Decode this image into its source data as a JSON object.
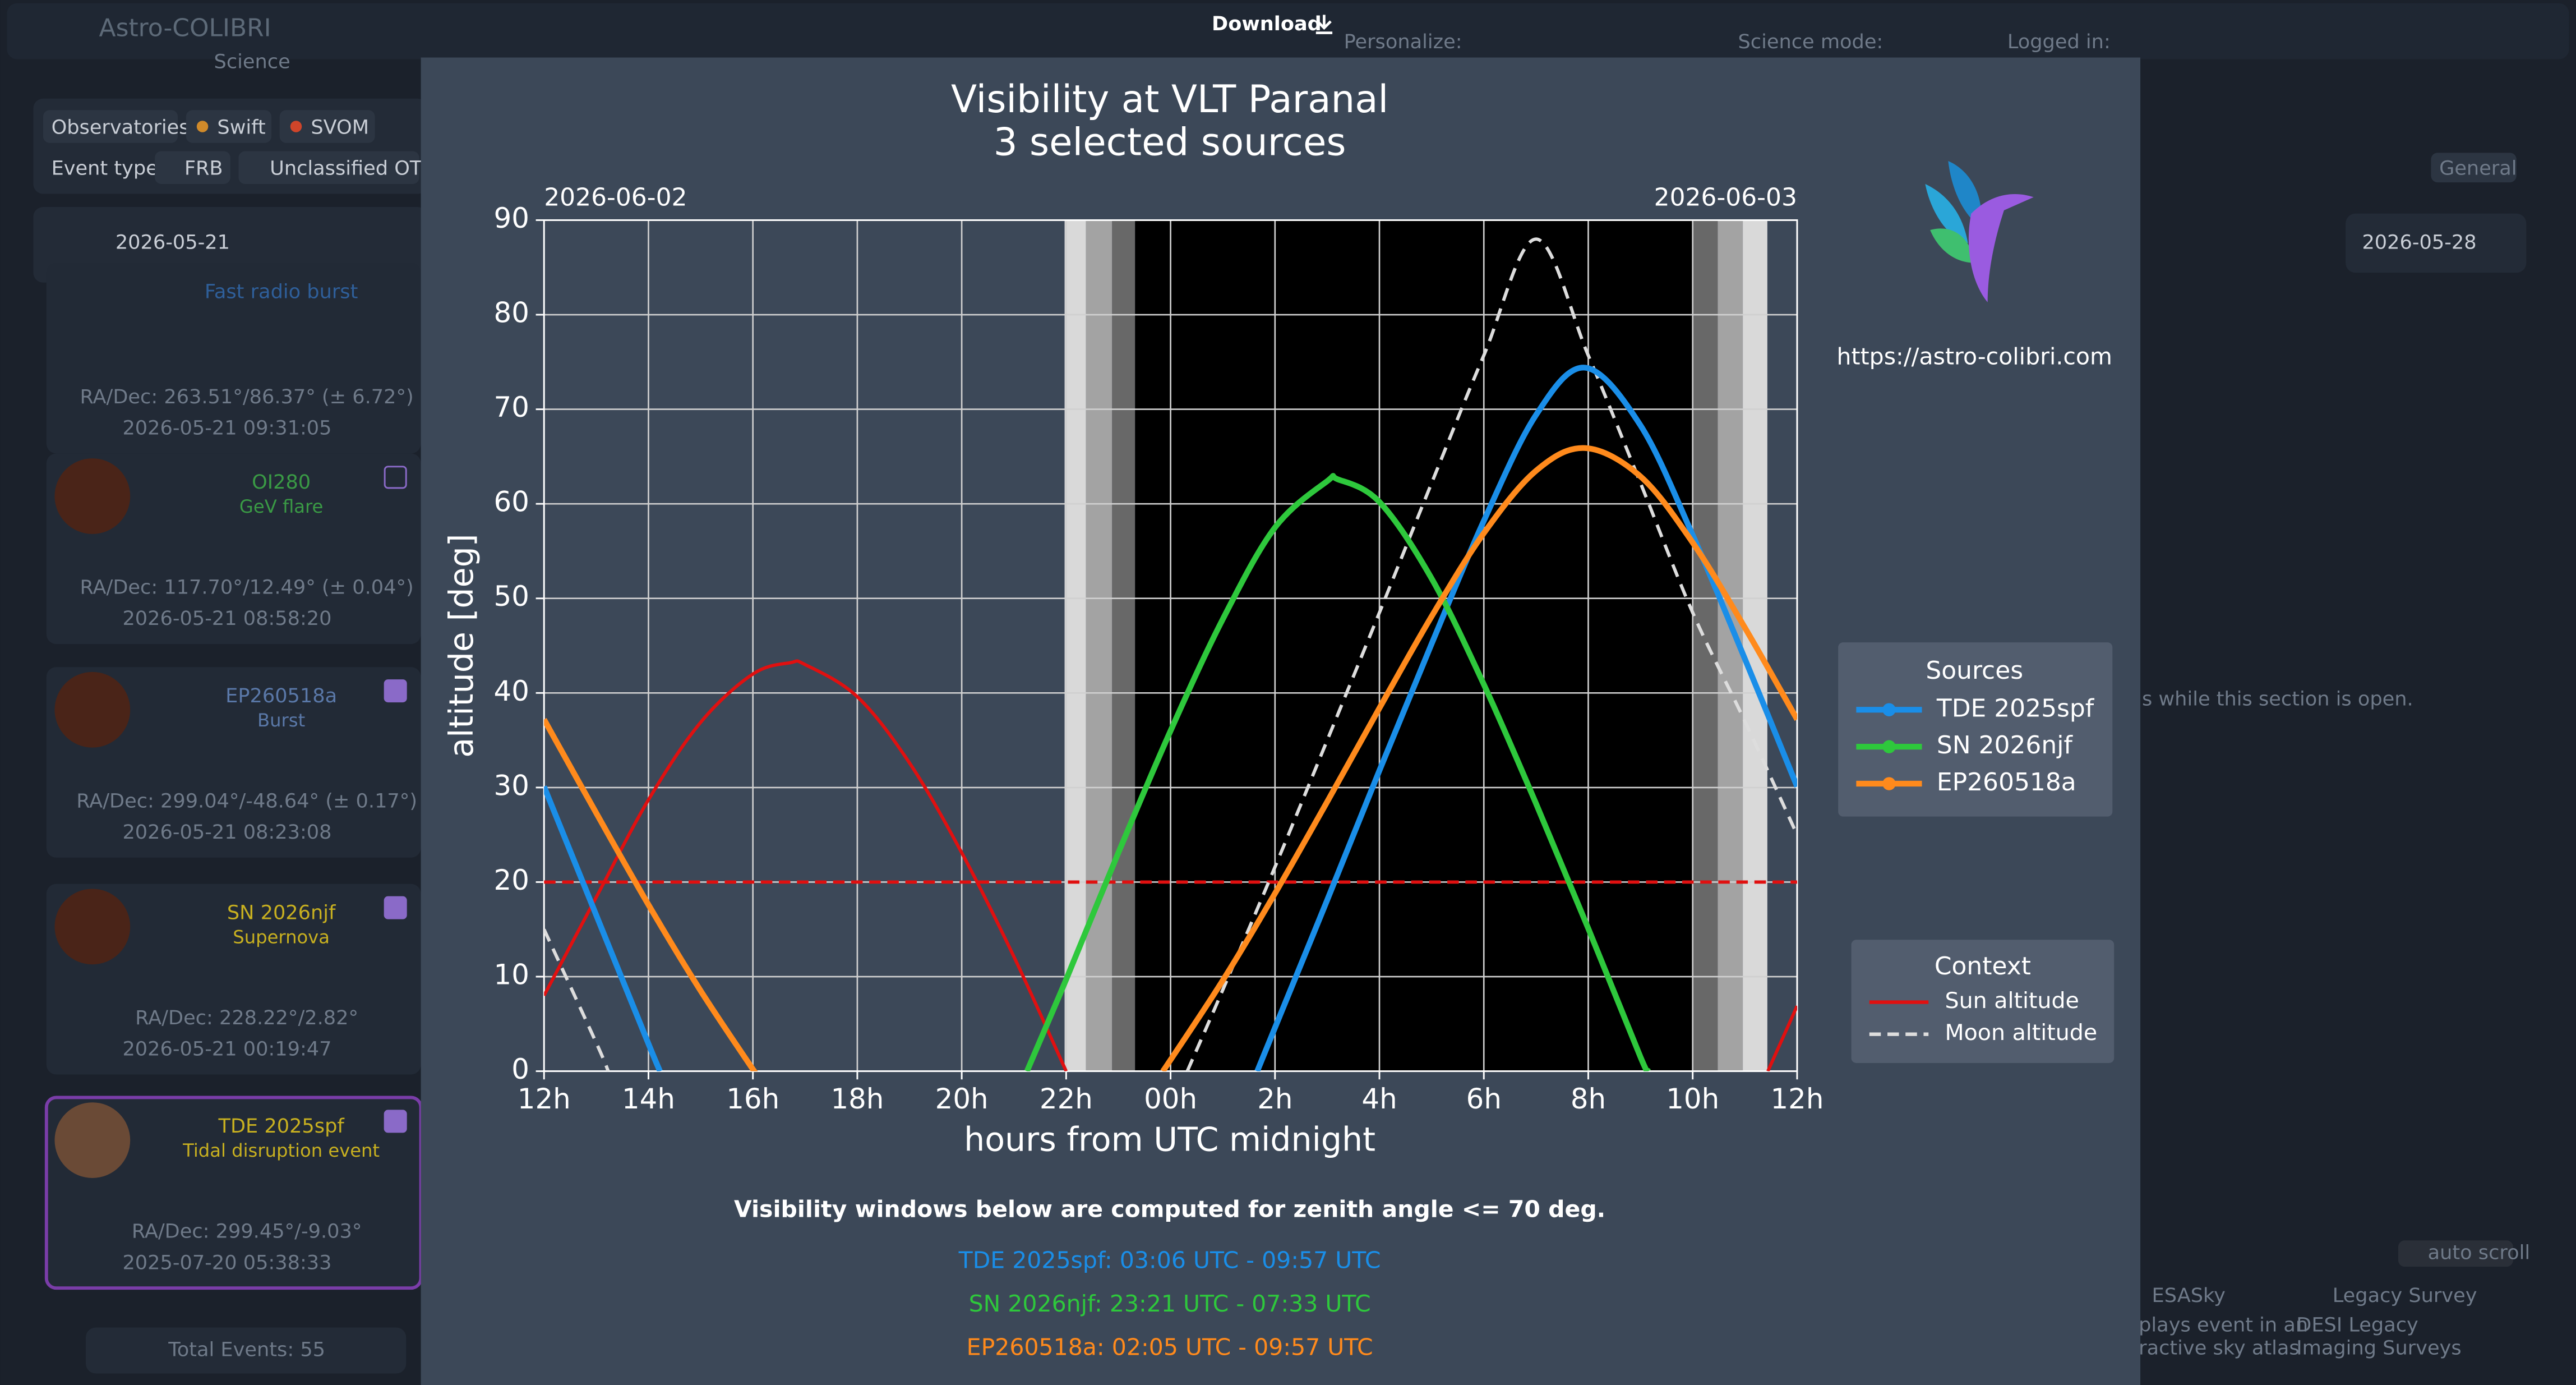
{
  "app": {
    "brand": "Astro-COLIBRI",
    "brand_sub": "Science",
    "download": "Download",
    "personalize": "Personalize:",
    "science_mode": "Science mode:",
    "logged_in": "Logged in:",
    "filters": [
      "Observatories",
      "Swift",
      "SVOM",
      "Event type",
      "FRB",
      "Unclassified OT"
    ],
    "date_start": "2026-05-21",
    "date_end": "2026-05-28",
    "tab": "General",
    "events": [
      {
        "name": "Fast radio burst",
        "coords": "RA/Dec: 263.51°/86.37° (± 6.72°)",
        "time": "2026-05-21 09:31:05"
      },
      {
        "name": "OI280",
        "kind": "GeV flare",
        "coords": "RA/Dec: 117.70°/12.49° (± 0.04°)",
        "time": "2026-05-21 08:58:20"
      },
      {
        "name": "EP260518a",
        "kind": "Burst",
        "coords": "RA/Dec: 299.04°/-48.64° (± 0.17°)",
        "time": "2026-05-21 08:23:08"
      },
      {
        "name": "SN 2026njf",
        "kind": "Supernova",
        "coords": "RA/Dec: 228.22°/2.82°",
        "time": "2026-05-21 00:19:47"
      },
      {
        "name": "TDE 2025spf",
        "kind": "Tidal disruption event",
        "coords": "RA/Dec: 299.45°/-9.03°",
        "time": "2025-07-20 05:38:33"
      }
    ],
    "total": "Total Events: 55",
    "side_note": "s while this section is open.",
    "auto_scroll": "auto scroll",
    "tools": [
      {
        "name": "ESASky",
        "desc": "plays event in an",
        "desc2": "ractive sky atlas"
      },
      {
        "name": "Legacy Survey",
        "desc": "DESI Legacy",
        "desc2": "Imaging Surveys"
      }
    ]
  },
  "chart_data": {
    "type": "line",
    "title": "Visibility at VLT Paranal",
    "subtitle": "3 selected sources",
    "xlabel": "hours from UTC midnight",
    "ylabel": "altitude [deg]",
    "date_left": "2026-06-02",
    "date_right": "2026-06-03",
    "xlim": [
      -12,
      12
    ],
    "ylim": [
      0,
      90
    ],
    "xticks": [
      {
        "value": -12,
        "label": "12h"
      },
      {
        "value": -10,
        "label": "14h"
      },
      {
        "value": -8,
        "label": "16h"
      },
      {
        "value": -6,
        "label": "18h"
      },
      {
        "value": -4,
        "label": "20h"
      },
      {
        "value": -2,
        "label": "22h"
      },
      {
        "value": 0,
        "label": "00h"
      },
      {
        "value": 2,
        "label": "2h"
      },
      {
        "value": 4,
        "label": "4h"
      },
      {
        "value": 6,
        "label": "6h"
      },
      {
        "value": 8,
        "label": "8h"
      },
      {
        "value": 10,
        "label": "10h"
      },
      {
        "value": 12,
        "label": "12h"
      }
    ],
    "yticks": [
      0,
      10,
      20,
      30,
      40,
      50,
      60,
      70,
      80,
      90
    ],
    "grid": true,
    "threshold": 20,
    "threshold_color": "#e01010",
    "night_bands": [
      {
        "x": [
          -2.03,
          -1.62
        ],
        "color": "#d9d9d9"
      },
      {
        "x": [
          -1.62,
          -1.12
        ],
        "color": "#a3a3a3"
      },
      {
        "x": [
          -1.12,
          -0.68
        ],
        "color": "#686868"
      },
      {
        "x": [
          -0.68,
          10.01
        ],
        "color": "#000000"
      },
      {
        "x": [
          10.01,
          10.48
        ],
        "color": "#686868"
      },
      {
        "x": [
          10.48,
          10.96
        ],
        "color": "#a3a3a3"
      },
      {
        "x": [
          10.96,
          11.43
        ],
        "color": "#d9d9d9"
      }
    ],
    "legend_title": "Sources",
    "series": [
      {
        "name": "TDE 2025spf",
        "color": "#1a8ee8",
        "x": [
          -12,
          -11,
          -10,
          -9.78,
          -4,
          1.66,
          2,
          3,
          4,
          5,
          6,
          7,
          7.94,
          9,
          10,
          11,
          12
        ],
        "values": [
          30.1,
          16.5,
          2.9,
          0,
          null,
          0,
          4.6,
          18.1,
          31.8,
          45.2,
          58.2,
          69.4,
          74.4,
          68.3,
          56.7,
          43.6,
          30.1
        ]
      },
      {
        "name": "SN 2026njf",
        "color": "#2ec83c",
        "x": [
          -2.75,
          -2,
          -1,
          0,
          1,
          2,
          3,
          3.2,
          4,
          5,
          6,
          7,
          8,
          9,
          9.15
        ],
        "values": [
          0,
          9.7,
          23.1,
          36.0,
          47.8,
          57.5,
          62.4,
          62.6,
          60.2,
          52.1,
          40.9,
          28.3,
          15.1,
          1.5,
          0
        ]
      },
      {
        "name": "EP260518a",
        "color": "#ff8a1c",
        "x": [
          -12,
          -11,
          -10,
          -9,
          -8,
          -7.97,
          -4,
          -0.15,
          0,
          1,
          2,
          3,
          4,
          5,
          6,
          7,
          7.94,
          9,
          10,
          11,
          12
        ],
        "values": [
          37.2,
          27.3,
          17.6,
          8.5,
          0.2,
          0,
          null,
          0,
          1.2,
          9.6,
          18.8,
          28.5,
          38.4,
          48.1,
          56.9,
          63.5,
          65.9,
          62.9,
          55.9,
          46.9,
          37.2
        ]
      }
    ],
    "context_legend_title": "Context",
    "context_series": [
      {
        "name": "Sun altitude",
        "color": "#e01010",
        "linestyle": "solid",
        "x": [
          -12,
          -11,
          -10,
          -9,
          -8,
          -7.28,
          -7,
          -6,
          -5,
          -4,
          -3,
          -2,
          5,
          11.44,
          12
        ],
        "values": [
          8,
          18.4,
          28.7,
          36.9,
          42.0,
          43.2,
          43.0,
          39.6,
          32.6,
          23.1,
          12.1,
          0,
          null,
          0,
          6.9
        ]
      },
      {
        "name": "Moon altitude",
        "color": "#dddddd",
        "linestyle": "dashed",
        "x": [
          -12,
          -11,
          -10.77,
          -5,
          0.32,
          1,
          2,
          3,
          4,
          5,
          6,
          7,
          8,
          9,
          10,
          11,
          12
        ],
        "values": [
          15,
          3,
          0,
          null,
          0,
          8.6,
          21.6,
          35,
          48.5,
          62.2,
          75.7,
          88,
          75.7,
          62.2,
          48.5,
          37,
          25
        ]
      }
    ]
  },
  "logo_url": "https://astro-colibri.com",
  "visibility": {
    "note": "Visibility windows below are computed for zenith angle <= 70 deg.",
    "windows": [
      {
        "text": "TDE 2025spf: 03:06 UTC - 09:57 UTC",
        "color": "#1a8ee8"
      },
      {
        "text": "SN 2026njf: 23:21 UTC - 07:33 UTC",
        "color": "#2ec83c"
      },
      {
        "text": "EP260518a: 02:05 UTC - 09:57 UTC",
        "color": "#ff8a1c"
      }
    ]
  }
}
